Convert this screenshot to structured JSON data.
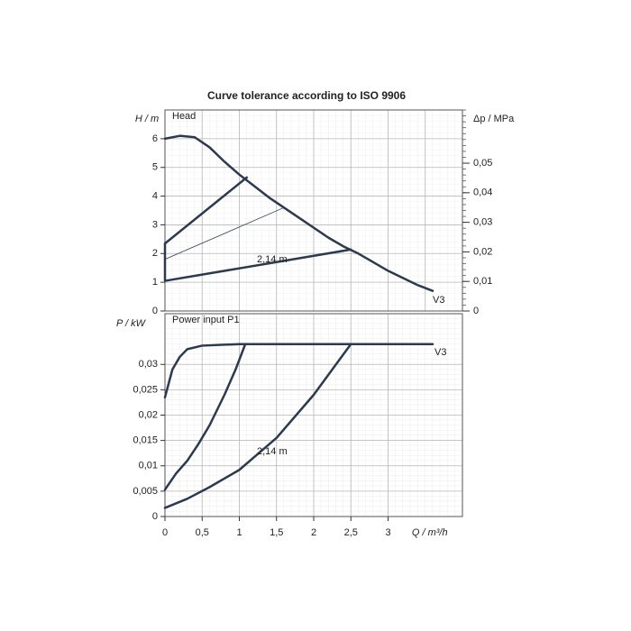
{
  "chart_data": [
    {
      "type": "line",
      "title": "Curve tolerance according to ISO 9906",
      "panel_label": "Head",
      "ylabel": "H / m",
      "y2label": "Δp / MPa",
      "xlim": [
        0,
        4
      ],
      "xticks": [
        0,
        0.5,
        1,
        1.5,
        2,
        2.5,
        3,
        3.5,
        4
      ],
      "ylim": [
        0,
        7
      ],
      "yticks": [
        0,
        1,
        2,
        3,
        4,
        5,
        6
      ],
      "y2lim": [
        0,
        0.068
      ],
      "y2ticks": [
        0,
        {
          "value": 0.01,
          "label": "0,01"
        },
        {
          "value": 0.02,
          "label": "0,02"
        },
        {
          "value": 0.03,
          "label": "0,03"
        },
        {
          "value": 0.04,
          "label": "0,04"
        },
        {
          "value": 0.05,
          "label": "0,05"
        }
      ],
      "grid": true,
      "annotations": [
        "V3",
        "2,14 m"
      ],
      "series": [
        {
          "name": "V3",
          "color": "#2b3a4f",
          "linewidth": 2.5,
          "x": [
            0,
            0.2,
            0.4,
            0.6,
            0.8,
            1.0,
            1.2,
            1.4,
            1.6,
            1.8,
            2.0,
            2.2,
            2.4,
            2.6,
            2.8,
            3.0,
            3.2,
            3.4,
            3.6
          ],
          "values": [
            6.0,
            6.1,
            6.05,
            5.7,
            5.2,
            4.75,
            4.35,
            3.95,
            3.6,
            3.25,
            2.9,
            2.55,
            2.25,
            2.0,
            1.7,
            1.4,
            1.15,
            0.9,
            0.7
          ]
        },
        {
          "color": "#2b3a4f",
          "linewidth": 2.5,
          "x": [
            1.1,
            0,
            0,
            0,
            2.5
          ],
          "values": [
            4.65,
            2.35,
            1.8,
            1.05,
            2.14
          ]
        },
        {
          "color": "#2b3a4f",
          "linewidth": 0.8,
          "x": [
            0,
            1.6
          ],
          "values": [
            1.8,
            3.6
          ]
        }
      ]
    },
    {
      "type": "line",
      "panel_label": "Power input P1",
      "ylabel": "P  / kW",
      "xlabel": "Q / m³/h",
      "xlim": [
        0,
        4
      ],
      "xticks": [
        0,
        {
          "value": 0.5,
          "label": "0,5"
        },
        1,
        {
          "value": 1.5,
          "label": "1,5"
        },
        2,
        {
          "value": 2.5,
          "label": "2,5"
        },
        3
      ],
      "ylim": [
        0,
        0.04
      ],
      "yticks": [
        0,
        {
          "value": 0.005,
          "label": "0,005"
        },
        {
          "value": 0.01,
          "label": "0,01"
        },
        {
          "value": 0.015,
          "label": "0,015"
        },
        {
          "value": 0.02,
          "label": "0,02"
        },
        {
          "value": 0.025,
          "label": "0,025"
        },
        {
          "value": 0.03,
          "label": "0,03"
        }
      ],
      "grid": true,
      "annotations": [
        "V3",
        "2,14 m"
      ],
      "series": [
        {
          "name": "V3",
          "color": "#2b3a4f",
          "linewidth": 2.5,
          "x": [
            0,
            0.1,
            0.2,
            0.3,
            0.5,
            1.0,
            2.0,
            3.6
          ],
          "values": [
            0.0235,
            0.029,
            0.0315,
            0.033,
            0.0337,
            0.034,
            0.034,
            0.034
          ]
        },
        {
          "color": "#2b3a4f",
          "linewidth": 2.5,
          "x": [
            0,
            0.15,
            0.3,
            0.45,
            0.6,
            0.8,
            0.95,
            1.08
          ],
          "values": [
            0.0053,
            0.0085,
            0.011,
            0.0143,
            0.018,
            0.024,
            0.029,
            0.034
          ]
        },
        {
          "color": "#2b3a4f",
          "linewidth": 2.5,
          "x": [
            0,
            0.3,
            0.6,
            1.0,
            1.5,
            2.0,
            2.5
          ],
          "values": [
            0.0017,
            0.0035,
            0.0058,
            0.0092,
            0.0155,
            0.024,
            0.034
          ]
        }
      ]
    }
  ]
}
